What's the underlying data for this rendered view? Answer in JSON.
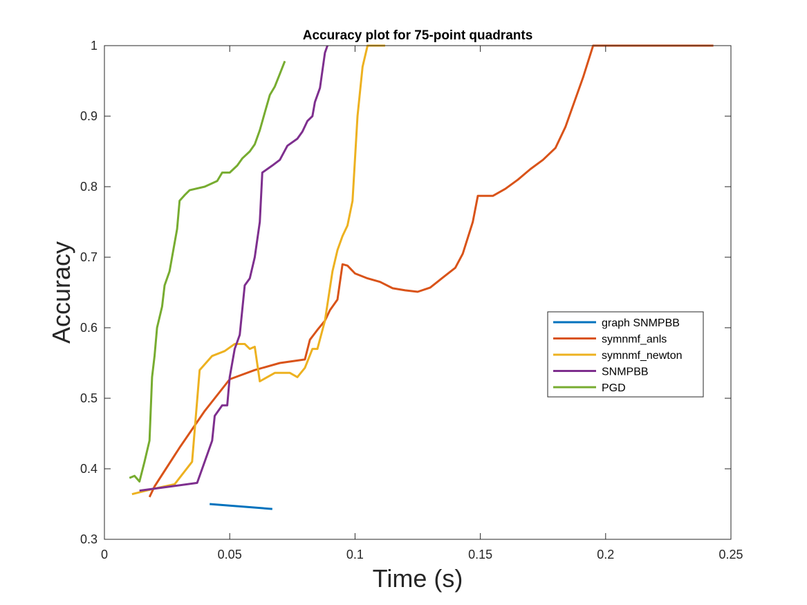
{
  "chart_data": {
    "type": "line",
    "title": "Accuracy plot for 75-point quadrants",
    "xlabel": "Time (s)",
    "ylabel": "Accuracy",
    "xlim": [
      0,
      0.25
    ],
    "ylim": [
      0.3,
      1
    ],
    "xticks": [
      0,
      0.05,
      0.1,
      0.15,
      0.2,
      0.25
    ],
    "xtick_labels": [
      "0",
      "0.05",
      "0.1",
      "0.15",
      "0.2",
      "0.25"
    ],
    "yticks": [
      0.3,
      0.4,
      0.5,
      0.6,
      0.7,
      0.8,
      0.9,
      1
    ],
    "ytick_labels": [
      "0.3",
      "0.4",
      "0.5",
      "0.6",
      "0.7",
      "0.8",
      "0.9",
      "1"
    ],
    "grid": false,
    "legend_position": "center-right",
    "series": [
      {
        "name": "graph SNMPBB",
        "color": "#0072BD",
        "points": [
          [
            0.042,
            0.35
          ],
          [
            0.067,
            0.343
          ]
        ]
      },
      {
        "name": "symnmf_anls",
        "color": "#D95319",
        "points": [
          [
            0.018,
            0.36
          ],
          [
            0.02,
            0.375
          ],
          [
            0.03,
            0.43
          ],
          [
            0.04,
            0.482
          ],
          [
            0.05,
            0.527
          ],
          [
            0.06,
            0.54
          ],
          [
            0.07,
            0.55
          ],
          [
            0.08,
            0.555
          ],
          [
            0.082,
            0.583
          ],
          [
            0.085,
            0.597
          ],
          [
            0.088,
            0.61
          ],
          [
            0.09,
            0.625
          ],
          [
            0.093,
            0.64
          ],
          [
            0.095,
            0.69
          ],
          [
            0.097,
            0.688
          ],
          [
            0.1,
            0.677
          ],
          [
            0.105,
            0.67
          ],
          [
            0.11,
            0.665
          ],
          [
            0.115,
            0.656
          ],
          [
            0.12,
            0.653
          ],
          [
            0.125,
            0.651
          ],
          [
            0.13,
            0.657
          ],
          [
            0.135,
            0.671
          ],
          [
            0.14,
            0.685
          ],
          [
            0.143,
            0.705
          ],
          [
            0.147,
            0.75
          ],
          [
            0.149,
            0.787
          ],
          [
            0.155,
            0.787
          ],
          [
            0.16,
            0.797
          ],
          [
            0.165,
            0.81
          ],
          [
            0.17,
            0.825
          ],
          [
            0.175,
            0.838
          ],
          [
            0.18,
            0.855
          ],
          [
            0.184,
            0.885
          ],
          [
            0.188,
            0.925
          ],
          [
            0.191,
            0.955
          ],
          [
            0.195,
            1.0
          ],
          [
            0.243,
            1.0
          ]
        ]
      },
      {
        "name": "symnmf_newton",
        "color": "#EDB120",
        "points": [
          [
            0.011,
            0.364
          ],
          [
            0.02,
            0.372
          ],
          [
            0.028,
            0.378
          ],
          [
            0.035,
            0.41
          ],
          [
            0.038,
            0.54
          ],
          [
            0.043,
            0.56
          ],
          [
            0.048,
            0.567
          ],
          [
            0.052,
            0.577
          ],
          [
            0.056,
            0.577
          ],
          [
            0.058,
            0.57
          ],
          [
            0.06,
            0.573
          ],
          [
            0.062,
            0.524
          ],
          [
            0.068,
            0.536
          ],
          [
            0.074,
            0.536
          ],
          [
            0.077,
            0.53
          ],
          [
            0.08,
            0.543
          ],
          [
            0.083,
            0.57
          ],
          [
            0.085,
            0.57
          ],
          [
            0.088,
            0.61
          ],
          [
            0.091,
            0.68
          ],
          [
            0.093,
            0.71
          ],
          [
            0.095,
            0.73
          ],
          [
            0.097,
            0.745
          ],
          [
            0.099,
            0.78
          ],
          [
            0.1,
            0.84
          ],
          [
            0.101,
            0.9
          ],
          [
            0.103,
            0.97
          ],
          [
            0.105,
            1.0
          ],
          [
            0.112,
            1.0
          ]
        ]
      },
      {
        "name": "SNMPBB",
        "color": "#7E2F8E",
        "points": [
          [
            0.014,
            0.369
          ],
          [
            0.037,
            0.38
          ],
          [
            0.04,
            0.41
          ],
          [
            0.043,
            0.44
          ],
          [
            0.044,
            0.475
          ],
          [
            0.047,
            0.49
          ],
          [
            0.049,
            0.49
          ],
          [
            0.05,
            0.53
          ],
          [
            0.052,
            0.57
          ],
          [
            0.054,
            0.59
          ],
          [
            0.056,
            0.66
          ],
          [
            0.058,
            0.67
          ],
          [
            0.06,
            0.7
          ],
          [
            0.062,
            0.75
          ],
          [
            0.063,
            0.82
          ],
          [
            0.067,
            0.83
          ],
          [
            0.07,
            0.838
          ],
          [
            0.073,
            0.858
          ],
          [
            0.077,
            0.868
          ],
          [
            0.079,
            0.878
          ],
          [
            0.081,
            0.893
          ],
          [
            0.083,
            0.9
          ],
          [
            0.084,
            0.92
          ],
          [
            0.086,
            0.94
          ],
          [
            0.087,
            0.965
          ],
          [
            0.088,
            0.99
          ],
          [
            0.089,
            1.0
          ]
        ]
      },
      {
        "name": "PGD",
        "color": "#77AC30",
        "points": [
          [
            0.01,
            0.387
          ],
          [
            0.012,
            0.39
          ],
          [
            0.014,
            0.382
          ],
          [
            0.016,
            0.41
          ],
          [
            0.018,
            0.44
          ],
          [
            0.019,
            0.53
          ],
          [
            0.02,
            0.56
          ],
          [
            0.021,
            0.6
          ],
          [
            0.023,
            0.63
          ],
          [
            0.024,
            0.66
          ],
          [
            0.026,
            0.68
          ],
          [
            0.027,
            0.7
          ],
          [
            0.029,
            0.74
          ],
          [
            0.03,
            0.78
          ],
          [
            0.032,
            0.788
          ],
          [
            0.034,
            0.795
          ],
          [
            0.04,
            0.8
          ],
          [
            0.045,
            0.808
          ],
          [
            0.047,
            0.82
          ],
          [
            0.05,
            0.82
          ],
          [
            0.053,
            0.83
          ],
          [
            0.055,
            0.84
          ],
          [
            0.058,
            0.85
          ],
          [
            0.06,
            0.86
          ],
          [
            0.062,
            0.88
          ],
          [
            0.064,
            0.905
          ],
          [
            0.066,
            0.93
          ],
          [
            0.068,
            0.942
          ],
          [
            0.07,
            0.96
          ],
          [
            0.072,
            0.978
          ]
        ]
      }
    ]
  }
}
